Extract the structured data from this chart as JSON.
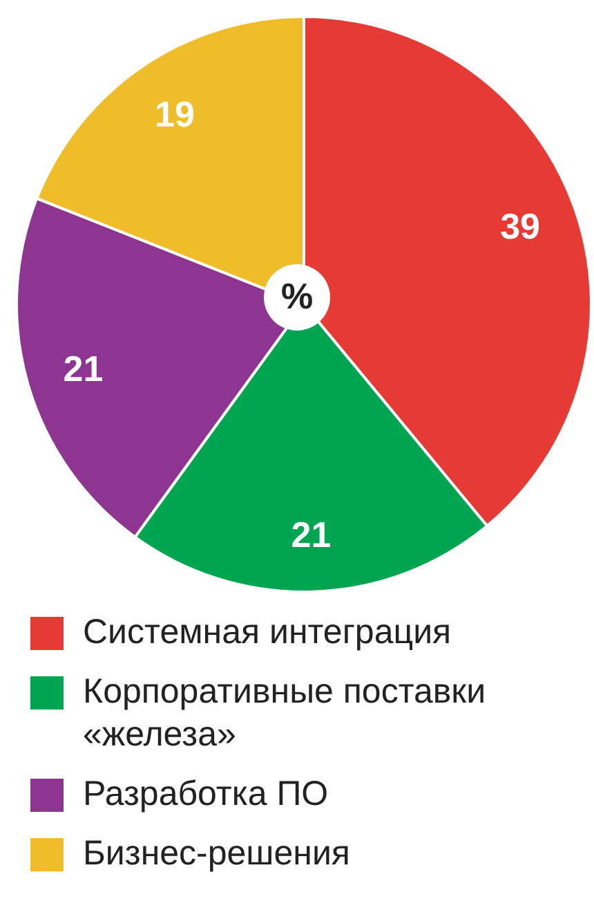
{
  "chart_data": {
    "type": "pie",
    "categories": [
      "Системная интеграция",
      "Корпоративные поставки «железа»",
      "Разработка ПО",
      "Бизнес-решения"
    ],
    "values": [
      39,
      21,
      21,
      19
    ],
    "colors": [
      "#e63a34",
      "#00a551",
      "#8d3590",
      "#f0bd2a"
    ],
    "data_labels": true,
    "legend": "bottom",
    "annotations": [
      "%"
    ]
  }
}
